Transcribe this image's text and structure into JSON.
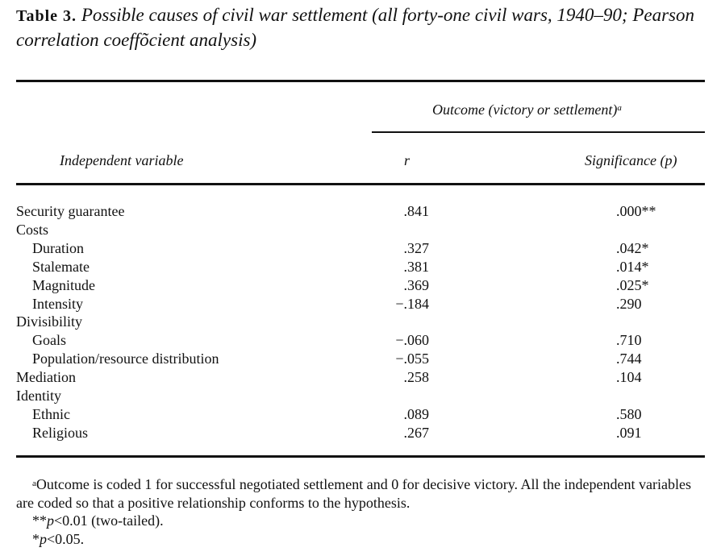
{
  "caption": {
    "label": "Table 3.",
    "text": "Possible causes of civil war settlement (all forty-one civil wars, 1940–90; Pearson correlation coeffõcient analysis)"
  },
  "header": {
    "group": "Outcome (victory or settlement)",
    "group_mark": "a",
    "col_variable": "Independent variable",
    "col_r": "r",
    "col_p": "Significance (p)"
  },
  "rows": [
    {
      "label": "Security guarantee",
      "r": ".841",
      "p": ".000**",
      "indent": false
    },
    {
      "label": "Costs",
      "r": "",
      "p": "",
      "indent": false
    },
    {
      "label": "Duration",
      "r": ".327",
      "p": ".042*",
      "indent": true
    },
    {
      "label": "Stalemate",
      "r": ".381",
      "p": ".014*",
      "indent": true
    },
    {
      "label": "Magnitude",
      "r": ".369",
      "p": ".025*",
      "indent": true
    },
    {
      "label": "Intensity",
      "r": "−.184",
      "p": ".290",
      "indent": true
    },
    {
      "label": "Divisibility",
      "r": "",
      "p": "",
      "indent": false
    },
    {
      "label": "Goals",
      "r": "−.060",
      "p": ".710",
      "indent": true
    },
    {
      "label": "Population/resource distribution",
      "r": "−.055",
      "p": ".744",
      "indent": true
    },
    {
      "label": "Mediation",
      "r": ".258",
      "p": ".104",
      "indent": false
    },
    {
      "label": "Identity",
      "r": "",
      "p": "",
      "indent": false
    },
    {
      "label": "Ethnic",
      "r": ".089",
      "p": ".580",
      "indent": true
    },
    {
      "label": "Religious",
      "r": ".267",
      "p": ".091",
      "indent": true
    }
  ],
  "notes": {
    "note_a_mark": "a",
    "note_a": "Outcome is coded 1 for successful negotiated settlement and 0 for decisive victory. All the independent variables are coded so that a positive relationship conforms to the hypothesis.",
    "note_double_star_prefix": "**",
    "note_double_star_p": "p",
    "note_double_star_text": "<0.01 (two-tailed).",
    "note_star_prefix": "*",
    "note_star_p": "p",
    "note_star_text": "<0.05."
  }
}
